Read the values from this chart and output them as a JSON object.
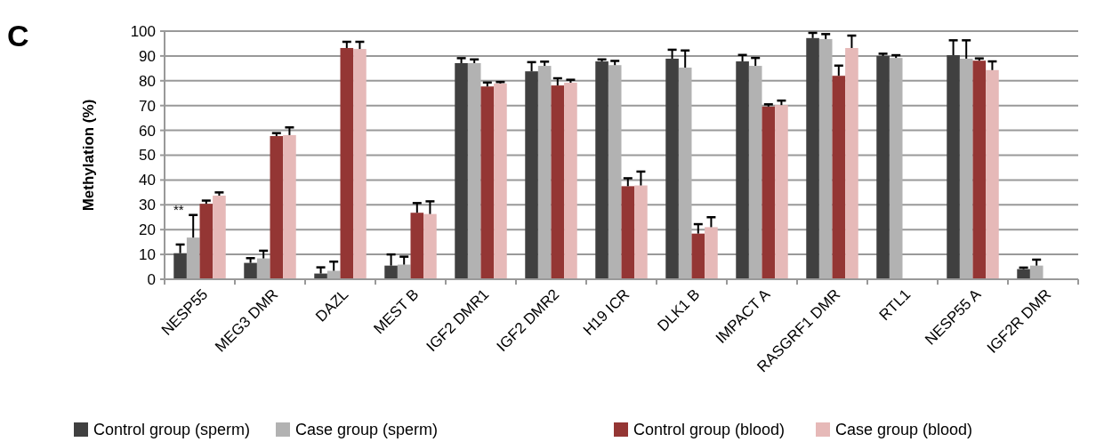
{
  "chart_data": {
    "type": "bar",
    "ylabel": "Methylation (%)",
    "annotations": [
      "C",
      "**"
    ],
    "categories": [
      "NESP55",
      "MEG3 DMR",
      "DAZL",
      "MEST B",
      "IGF2 DMR1",
      "IGF2 DMR2",
      "H19 ICR",
      "DLK1 B",
      "IMPACT A",
      "RASGRF1 DMR",
      "RTL1",
      "NESP55 A",
      "IGF2R DMR"
    ],
    "series": [
      {
        "name": "Control group (sperm)",
        "color": "#404040",
        "values": [
          10.5,
          6.6,
          2.3,
          5.5,
          87.1,
          83.8,
          87.8,
          88.9,
          87.8,
          97.2,
          90,
          90.3,
          4.1
        ],
        "errors": [
          [
            10.5,
            14
          ],
          [
            6.6,
            8.5
          ],
          [
            2.3,
            4.8
          ],
          [
            5.5,
            10
          ],
          [
            87.1,
            89.1
          ],
          [
            83.8,
            87.5
          ],
          [
            87.8,
            88.6
          ],
          [
            88.9,
            92.5
          ],
          [
            87.8,
            90.4
          ],
          [
            97.2,
            99.3
          ],
          [
            90,
            90.9
          ],
          [
            90.3,
            96.3
          ],
          [
            4.1,
            4.7
          ]
        ]
      },
      {
        "name": "Case group (sperm)",
        "color": "#b2b2b2",
        "values": [
          16.8,
          8.4,
          3.4,
          5.9,
          87.1,
          86,
          86.3,
          85.3,
          86,
          96.8,
          89.2,
          88.9,
          5.5
        ],
        "errors": [
          [
            16.8,
            25.9
          ],
          [
            8.4,
            11.5
          ],
          [
            3.4,
            7.1
          ],
          [
            5.9,
            9.1
          ],
          [
            87.1,
            88.6
          ],
          [
            86,
            87.7
          ],
          [
            86.3,
            88
          ],
          [
            85.3,
            92.2
          ],
          [
            86,
            89.2
          ],
          [
            96.8,
            98.8
          ],
          [
            89.2,
            90.3
          ],
          [
            88.9,
            96.3
          ],
          [
            5.5,
            7.9
          ]
        ]
      },
      {
        "name": "Control group (blood)",
        "color": "#943634",
        "values": [
          30.4,
          57.7,
          93.2,
          26.8,
          77.7,
          78.1,
          37.5,
          18.4,
          69.6,
          82,
          null,
          88.1,
          null
        ],
        "errors": [
          [
            30.4,
            31.7
          ],
          [
            57.7,
            58.9
          ],
          [
            93.2,
            95.7
          ],
          [
            26.8,
            30.7
          ],
          [
            77.7,
            79.3
          ],
          [
            78.1,
            81
          ],
          [
            37.5,
            40.7
          ],
          [
            18.4,
            22.2
          ],
          [
            69.6,
            70.5
          ],
          [
            82,
            86.1
          ],
          null,
          [
            88.1,
            89
          ],
          null
        ]
      },
      {
        "name": "Case group (blood)",
        "color": "#e6b9b8",
        "values": [
          33.7,
          58.1,
          92.8,
          26.3,
          78.9,
          79.2,
          37.8,
          21,
          70.2,
          93.2,
          null,
          84.3,
          null
        ],
        "errors": [
          [
            33.7,
            35
          ],
          [
            58.1,
            61.2
          ],
          [
            92.8,
            95.7
          ],
          [
            26.3,
            31.4
          ],
          [
            78.9,
            79.5
          ],
          [
            79.2,
            80.4
          ],
          [
            37.8,
            43.4
          ],
          [
            21,
            25
          ],
          [
            70.2,
            72
          ],
          [
            93.2,
            98.2
          ],
          null,
          [
            84.3,
            87.8
          ],
          null
        ]
      }
    ],
    "ylim": [
      0,
      100
    ],
    "yticks": [
      0,
      10,
      20,
      30,
      40,
      50,
      60,
      70,
      80,
      90,
      100
    ],
    "grid": "y",
    "legend": "bottom"
  }
}
